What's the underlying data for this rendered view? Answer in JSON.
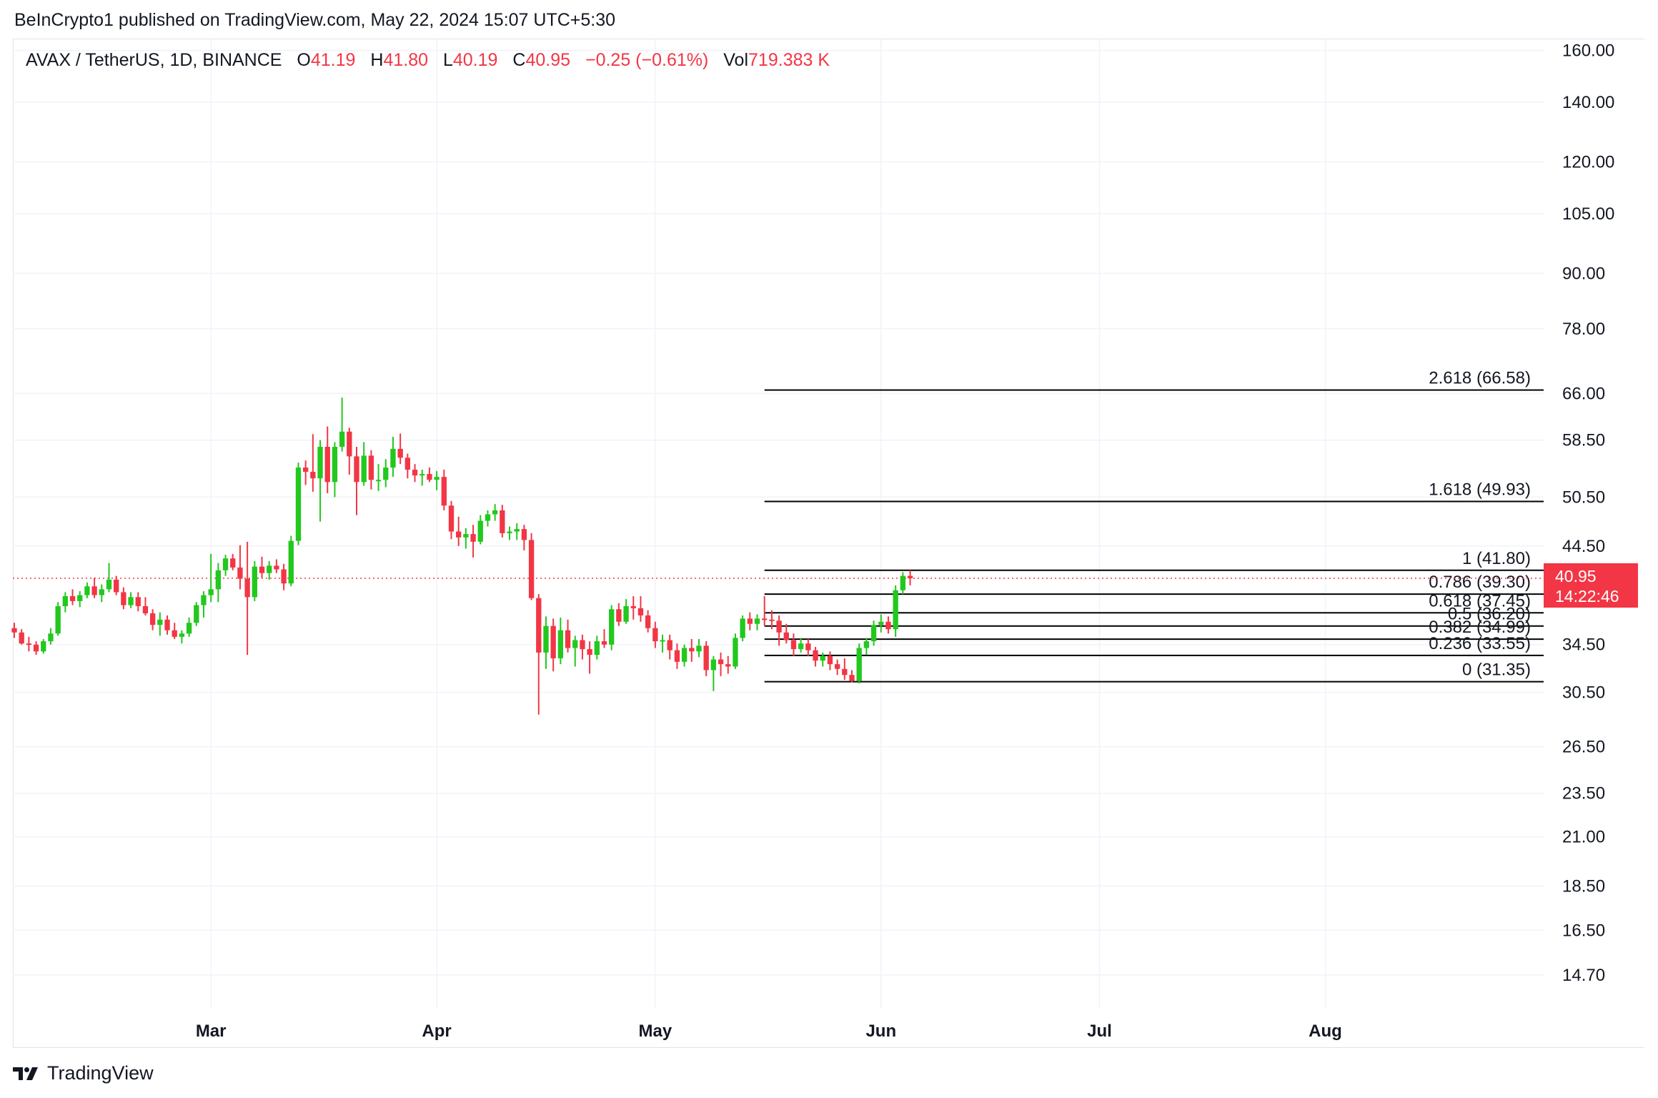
{
  "header": {
    "published": "BeInCrypto1 published on TradingView.com, May 22, 2024 15:07 UTC+5:30"
  },
  "legend": {
    "symbol": "AVAX / TetherUS, 1D, BINANCE",
    "o_label": "O",
    "o_value": "41.19",
    "h_label": "H",
    "h_value": "41.80",
    "l_label": "L",
    "l_value": "40.19",
    "c_label": "C",
    "c_value": "40.95",
    "change": "−0.25 (−0.61%)",
    "vol_label": "Vol",
    "vol_value": "719.383 K"
  },
  "price_tag": {
    "price": "40.95",
    "countdown": "14:22:46"
  },
  "footer": {
    "brand": "TradingView"
  },
  "colors": {
    "up": "#22c81e",
    "down": "#f23645",
    "grid": "#f0f3fa",
    "text": "#131722",
    "fib_line": "#000000"
  },
  "chart_data": {
    "type": "candlestick",
    "scale": "log",
    "ylim": [
      13.5,
      165
    ],
    "y_ticks": [
      "160.00",
      "140.00",
      "120.00",
      "105.00",
      "90.00",
      "78.00",
      "66.00",
      "58.50",
      "50.50",
      "44.50",
      "34.50",
      "30.50",
      "26.50",
      "23.50",
      "21.00",
      "18.50",
      "16.50",
      "14.70"
    ],
    "x_ticks": [
      "Mar",
      "Apr",
      "May",
      "Jun",
      "Jul",
      "Aug"
    ],
    "x_tick_days": [
      29,
      60,
      90,
      121,
      151,
      182
    ],
    "x_range_days": [
      2,
      211
    ],
    "last_price": 40.95,
    "fibonacci": {
      "start_day": 105,
      "levels": [
        {
          "label": "2.618 (66.58)",
          "value": 66.58
        },
        {
          "label": "1.618 (49.93)",
          "value": 49.93
        },
        {
          "label": "1 (41.80)",
          "value": 41.8
        },
        {
          "label": "0.786 (39.30)",
          "value": 39.3
        },
        {
          "label": "0.618 (37.45)",
          "value": 37.45
        },
        {
          "label": "0.5 (36.20)",
          "value": 36.2
        },
        {
          "label": "0.382 (34.99)",
          "value": 34.99
        },
        {
          "label": "0.236 (33.55)",
          "value": 33.55
        },
        {
          "label": "0 (31.35)",
          "value": 31.35
        }
      ]
    },
    "candles_fields": [
      "day",
      "open",
      "high",
      "low",
      "close"
    ],
    "candles": [
      [
        2,
        36.0,
        36.5,
        35.1,
        35.6
      ],
      [
        3,
        35.6,
        35.9,
        34.5,
        34.6
      ],
      [
        4,
        34.6,
        35.2,
        33.9,
        34.5
      ],
      [
        5,
        34.5,
        34.8,
        33.6,
        33.9
      ],
      [
        6,
        33.9,
        35.0,
        33.7,
        34.8
      ],
      [
        7,
        34.8,
        36.0,
        34.5,
        35.5
      ],
      [
        8,
        35.5,
        38.5,
        35.3,
        38.1
      ],
      [
        9,
        38.1,
        39.5,
        37.5,
        39.1
      ],
      [
        10,
        39.1,
        39.8,
        38.2,
        38.6
      ],
      [
        11,
        38.6,
        39.6,
        38.0,
        39.2
      ],
      [
        12,
        39.2,
        40.5,
        38.9,
        40.1
      ],
      [
        13,
        40.1,
        41.0,
        38.9,
        39.2
      ],
      [
        14,
        39.2,
        40.3,
        38.5,
        39.8
      ],
      [
        15,
        39.8,
        42.6,
        39.5,
        40.8
      ],
      [
        16,
        40.8,
        41.2,
        39.2,
        39.5
      ],
      [
        17,
        39.5,
        40.0,
        37.8,
        38.2
      ],
      [
        18,
        38.2,
        39.5,
        37.9,
        39.0
      ],
      [
        19,
        39.0,
        39.5,
        37.6,
        38.1
      ],
      [
        20,
        38.1,
        39.0,
        37.2,
        37.4
      ],
      [
        21,
        37.4,
        37.8,
        35.8,
        36.3
      ],
      [
        22,
        36.3,
        37.5,
        35.3,
        36.8
      ],
      [
        23,
        36.8,
        37.2,
        35.4,
        35.8
      ],
      [
        24,
        35.8,
        36.5,
        35.0,
        35.2
      ],
      [
        25,
        35.2,
        35.8,
        34.6,
        35.5
      ],
      [
        26,
        35.5,
        37.0,
        35.2,
        36.5
      ],
      [
        27,
        36.5,
        38.5,
        36.2,
        38.2
      ],
      [
        28,
        38.2,
        39.6,
        37.0,
        39.2
      ],
      [
        29,
        39.2,
        43.6,
        38.5,
        39.8
      ],
      [
        30,
        39.8,
        42.6,
        38.5,
        41.8
      ],
      [
        31,
        41.8,
        43.5,
        41.2,
        43.1
      ],
      [
        32,
        43.1,
        43.6,
        41.8,
        42.1
      ],
      [
        33,
        42.1,
        44.6,
        39.8,
        40.9
      ],
      [
        34,
        40.9,
        45.0,
        33.6,
        39.0
      ],
      [
        35,
        39.0,
        42.8,
        38.6,
        42.2
      ],
      [
        36,
        42.2,
        43.3,
        41.0,
        41.5
      ],
      [
        37,
        41.5,
        42.8,
        40.8,
        42.3
      ],
      [
        38,
        42.3,
        43.0,
        41.5,
        41.9
      ],
      [
        39,
        41.9,
        42.5,
        39.7,
        40.4
      ],
      [
        40,
        40.4,
        45.7,
        40.1,
        45.1
      ],
      [
        41,
        45.1,
        55.2,
        44.6,
        54.5
      ],
      [
        42,
        54.5,
        55.5,
        52.1,
        53.9
      ],
      [
        43,
        53.9,
        59.4,
        51.2,
        53.0
      ],
      [
        44,
        53.0,
        58.5,
        47.4,
        57.5
      ],
      [
        45,
        57.5,
        60.6,
        51.0,
        52.5
      ],
      [
        46,
        52.5,
        58.2,
        50.5,
        57.5
      ],
      [
        47,
        57.5,
        65.3,
        56.8,
        59.8
      ],
      [
        48,
        59.8,
        60.4,
        53.5,
        56.1
      ],
      [
        49,
        56.1,
        57.5,
        48.2,
        52.5
      ],
      [
        50,
        52.5,
        58.2,
        52.0,
        56.2
      ],
      [
        51,
        56.2,
        57.0,
        51.5,
        52.8
      ],
      [
        52,
        52.8,
        55.0,
        51.3,
        52.8
      ],
      [
        53,
        52.8,
        55.7,
        51.8,
        54.5
      ],
      [
        54,
        54.5,
        59.0,
        53.2,
        57.2
      ],
      [
        55,
        57.2,
        59.5,
        55.0,
        55.9
      ],
      [
        56,
        55.9,
        56.5,
        53.0,
        54.2
      ],
      [
        57,
        54.2,
        55.0,
        52.5,
        53.4
      ],
      [
        58,
        53.4,
        54.2,
        52.0,
        53.6
      ],
      [
        59,
        53.6,
        54.5,
        52.5,
        52.8
      ],
      [
        60,
        52.8,
        54.0,
        51.4,
        53.2
      ],
      [
        61,
        53.2,
        54.2,
        48.8,
        49.4
      ],
      [
        62,
        49.4,
        50.0,
        45.3,
        46.2
      ],
      [
        63,
        46.2,
        48.0,
        44.5,
        45.5
      ],
      [
        64,
        45.5,
        46.6,
        44.2,
        45.9
      ],
      [
        65,
        45.9,
        47.0,
        43.2,
        45.0
      ],
      [
        66,
        45.0,
        48.2,
        44.7,
        47.5
      ],
      [
        67,
        47.5,
        48.8,
        46.8,
        48.3
      ],
      [
        68,
        48.3,
        49.6,
        47.5,
        48.8
      ],
      [
        69,
        48.8,
        49.5,
        45.5,
        46.0
      ],
      [
        70,
        46.0,
        46.8,
        45.2,
        46.2
      ],
      [
        71,
        46.2,
        47.2,
        45.2,
        46.5
      ],
      [
        72,
        46.5,
        47.0,
        44.0,
        45.2
      ],
      [
        73,
        45.2,
        46.0,
        38.7,
        38.9
      ],
      [
        74,
        38.9,
        39.3,
        28.8,
        33.8
      ],
      [
        75,
        33.8,
        37.1,
        32.4,
        36.2
      ],
      [
        76,
        36.2,
        36.9,
        32.2,
        33.3
      ],
      [
        77,
        33.3,
        37.0,
        32.8,
        35.8
      ],
      [
        78,
        35.8,
        36.8,
        33.8,
        34.2
      ],
      [
        79,
        34.2,
        35.3,
        32.6,
        34.9
      ],
      [
        80,
        34.9,
        35.4,
        33.2,
        34.1
      ],
      [
        81,
        34.1,
        34.8,
        32.0,
        33.6
      ],
      [
        82,
        33.6,
        35.3,
        33.2,
        34.8
      ],
      [
        83,
        34.8,
        35.9,
        34.2,
        34.5
      ],
      [
        84,
        34.5,
        38.2,
        34.0,
        37.8
      ],
      [
        85,
        37.8,
        38.4,
        36.2,
        36.6
      ],
      [
        86,
        36.6,
        38.8,
        36.4,
        38.1
      ],
      [
        87,
        38.1,
        39.1,
        36.8,
        37.9
      ],
      [
        88,
        37.9,
        39.1,
        36.6,
        37.2
      ],
      [
        89,
        37.2,
        37.7,
        35.6,
        36.0
      ],
      [
        90,
        36.0,
        36.6,
        34.2,
        34.8
      ],
      [
        91,
        34.8,
        35.4,
        33.8,
        34.9
      ],
      [
        92,
        34.9,
        35.4,
        33.2,
        34.0
      ],
      [
        93,
        34.0,
        34.6,
        32.4,
        33.0
      ],
      [
        94,
        33.0,
        34.5,
        32.6,
        34.2
      ],
      [
        95,
        34.2,
        35.0,
        33.0,
        33.9
      ],
      [
        96,
        33.9,
        35.0,
        33.4,
        34.4
      ],
      [
        97,
        34.4,
        34.8,
        31.8,
        32.3
      ],
      [
        98,
        32.3,
        33.5,
        30.6,
        33.2
      ],
      [
        99,
        33.2,
        33.8,
        31.8,
        32.8
      ],
      [
        100,
        32.8,
        33.5,
        32.0,
        32.6
      ],
      [
        101,
        32.6,
        35.5,
        32.4,
        35.1
      ],
      [
        102,
        35.1,
        37.2,
        34.8,
        36.9
      ],
      [
        103,
        36.9,
        37.5,
        35.8,
        36.4
      ],
      [
        104,
        36.4,
        37.3,
        35.8,
        36.9
      ],
      [
        105,
        36.9,
        39.1,
        36.2,
        36.8
      ],
      [
        106,
        36.8,
        37.7,
        35.9,
        36.7
      ],
      [
        107,
        36.7,
        37.2,
        34.4,
        35.6
      ],
      [
        108,
        35.6,
        36.4,
        34.6,
        34.9
      ],
      [
        109,
        34.9,
        35.5,
        33.5,
        34.1
      ],
      [
        110,
        34.1,
        35.1,
        33.8,
        34.6
      ],
      [
        111,
        34.6,
        35.0,
        33.5,
        34.0
      ],
      [
        112,
        34.0,
        34.3,
        32.6,
        33.1
      ],
      [
        113,
        33.1,
        33.8,
        32.6,
        33.5
      ],
      [
        114,
        33.5,
        33.9,
        32.3,
        32.8
      ],
      [
        115,
        32.8,
        33.2,
        31.9,
        32.4
      ],
      [
        116,
        32.4,
        33.3,
        31.5,
        31.9
      ],
      [
        117,
        31.9,
        32.3,
        31.3,
        31.4
      ],
      [
        118,
        31.4,
        34.6,
        31.2,
        34.2
      ],
      [
        119,
        34.2,
        35.1,
        33.6,
        34.8
      ],
      [
        120,
        34.8,
        36.7,
        34.4,
        36.3
      ],
      [
        121,
        36.3,
        37.3,
        35.6,
        36.6
      ],
      [
        122,
        36.6,
        37.1,
        35.5,
        35.9
      ],
      [
        123,
        35.9,
        40.2,
        35.2,
        39.7
      ],
      [
        124,
        39.7,
        41.6,
        39.3,
        41.2
      ],
      [
        125,
        41.2,
        41.8,
        40.2,
        40.95
      ]
    ]
  }
}
